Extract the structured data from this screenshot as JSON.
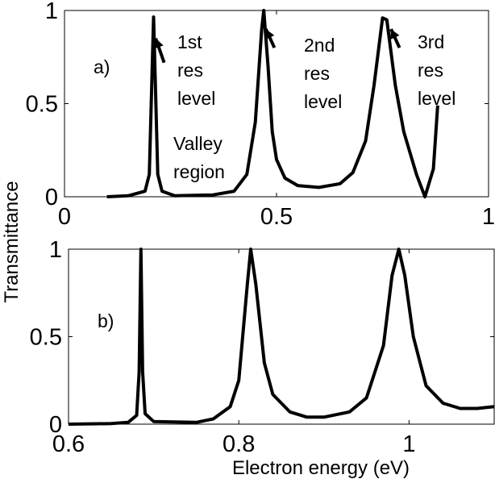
{
  "chart_data": [
    {
      "type": "line",
      "panel_label": "a)",
      "xlim": [
        0,
        1
      ],
      "ylim": [
        0,
        1
      ],
      "xticks": [
        "0",
        "0.5",
        "1"
      ],
      "xtick_values": [
        0,
        0.5,
        1
      ],
      "yticks": [
        "0",
        "0.5",
        "1"
      ],
      "ytick_values": [
        0,
        0.5,
        1
      ],
      "grid": false,
      "line_color": "#000000",
      "x": [
        0.1,
        0.15,
        0.19,
        0.2,
        0.21,
        0.22,
        0.23,
        0.26,
        0.35,
        0.4,
        0.43,
        0.45,
        0.465,
        0.47,
        0.48,
        0.49,
        0.5,
        0.52,
        0.55,
        0.6,
        0.65,
        0.68,
        0.71,
        0.73,
        0.75,
        0.76,
        0.78,
        0.8,
        0.83,
        0.85,
        0.87,
        0.88
      ],
      "y": [
        0,
        0.005,
        0.03,
        0.12,
        0.965,
        0.12,
        0.03,
        0.005,
        0.01,
        0.03,
        0.12,
        0.4,
        0.9,
        1.0,
        0.7,
        0.35,
        0.2,
        0.1,
        0.06,
        0.05,
        0.07,
        0.13,
        0.3,
        0.6,
        0.96,
        0.95,
        0.6,
        0.35,
        0.12,
        0,
        0.15,
        0.49
      ],
      "annotations": [
        {
          "lines": [
            "1st",
            "res",
            "level"
          ],
          "arrow_to": [
            0.215,
            0.85
          ]
        },
        {
          "lines": [
            "2nd",
            "res",
            "level"
          ],
          "arrow_to": [
            0.475,
            0.9
          ]
        },
        {
          "lines": [
            "3rd",
            "res",
            "level"
          ],
          "arrow_to": [
            0.77,
            0.9
          ]
        },
        {
          "lines": [
            "Valley",
            "region"
          ]
        }
      ]
    },
    {
      "type": "line",
      "panel_label": "b)",
      "xlim": [
        0.6,
        1.1
      ],
      "ylim": [
        0,
        1
      ],
      "xticks": [
        "0.6",
        "0.8",
        "1"
      ],
      "xtick_values": [
        0.6,
        0.8,
        1.0
      ],
      "yticks": [
        "0",
        "0.5",
        "1"
      ],
      "ytick_values": [
        0,
        0.5,
        1
      ],
      "grid": false,
      "line_color": "#000000",
      "xlabel": "Electron energy (eV)",
      "x": [
        0.6,
        0.65,
        0.67,
        0.68,
        0.683,
        0.685,
        0.687,
        0.69,
        0.7,
        0.75,
        0.77,
        0.79,
        0.8,
        0.81,
        0.814,
        0.82,
        0.83,
        0.84,
        0.86,
        0.88,
        0.9,
        0.93,
        0.95,
        0.97,
        0.98,
        0.988,
        0.995,
        1.005,
        1.02,
        1.04,
        1.06,
        1.08,
        1.1
      ],
      "y": [
        0,
        0.003,
        0.01,
        0.05,
        0.3,
        1,
        0.3,
        0.06,
        0.015,
        0.01,
        0.03,
        0.1,
        0.25,
        0.8,
        1,
        0.8,
        0.35,
        0.17,
        0.07,
        0.04,
        0.04,
        0.07,
        0.15,
        0.45,
        0.85,
        1,
        0.85,
        0.5,
        0.22,
        0.12,
        0.09,
        0.09,
        0.1
      ]
    }
  ],
  "shared_ylabel": "Transmittance"
}
